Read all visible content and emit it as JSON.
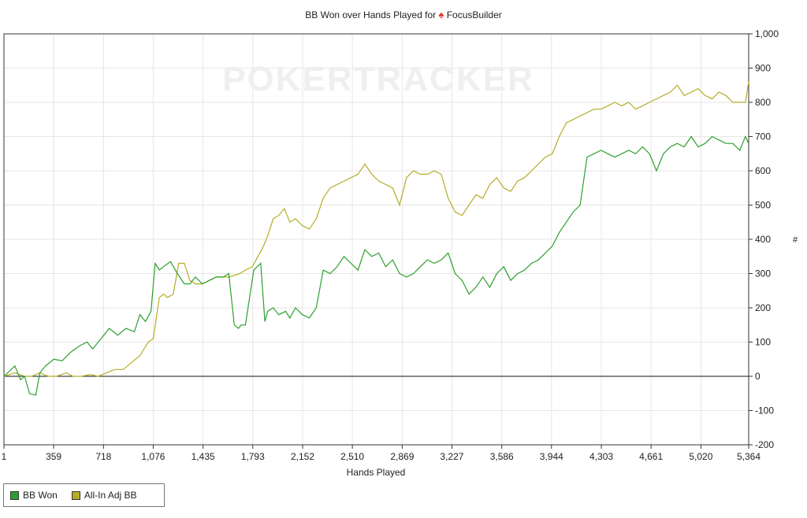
{
  "chart_data": {
    "type": "line",
    "title": "BB Won over Hands Played for",
    "title_player": "FocusBuilder",
    "title_icon": "spade-icon",
    "watermark": "POKERTRACKER",
    "xlabel": "Hands Played",
    "ylabel": "#",
    "xlim": [
      1,
      5364
    ],
    "ylim": [
      -200,
      1000
    ],
    "y_axis_side": "right",
    "grid": true,
    "legend_position": "bottom-left",
    "x_ticks": [
      1,
      359,
      718,
      1076,
      1435,
      1793,
      2152,
      2510,
      2869,
      3227,
      3586,
      3944,
      4303,
      4661,
      5020,
      5364
    ],
    "x_tick_labels": [
      "1",
      "359",
      "718",
      "1,076",
      "1,435",
      "1,793",
      "2,152",
      "2,510",
      "2,869",
      "3,227",
      "3,586",
      "3,944",
      "4,303",
      "4,661",
      "5,020",
      "5,364"
    ],
    "y_ticks": [
      -200,
      -100,
      0,
      100,
      200,
      300,
      400,
      500,
      600,
      700,
      800,
      900,
      1000
    ],
    "y_tick_labels": [
      "-200",
      "-100",
      "0",
      "100",
      "200",
      "300",
      "400",
      "500",
      "600",
      "700",
      "800",
      "900",
      "1,000"
    ],
    "series": [
      {
        "name": "BB Won",
        "color": "#2ca02c",
        "x": [
          1,
          80,
          120,
          150,
          185,
          230,
          260,
          300,
          360,
          420,
          480,
          550,
          600,
          640,
          700,
          760,
          820,
          880,
          940,
          980,
          1020,
          1060,
          1090,
          1120,
          1150,
          1200,
          1250,
          1300,
          1340,
          1380,
          1430,
          1480,
          1530,
          1580,
          1620,
          1660,
          1690,
          1710,
          1740,
          1800,
          1850,
          1880,
          1900,
          1940,
          1980,
          2030,
          2060,
          2100,
          2150,
          2200,
          2250,
          2300,
          2350,
          2400,
          2450,
          2500,
          2550,
          2600,
          2650,
          2700,
          2750,
          2800,
          2850,
          2900,
          2950,
          3000,
          3050,
          3100,
          3150,
          3200,
          3250,
          3300,
          3350,
          3400,
          3450,
          3500,
          3550,
          3600,
          3650,
          3700,
          3750,
          3800,
          3850,
          3900,
          3950,
          4000,
          4050,
          4100,
          4150,
          4200,
          4250,
          4300,
          4350,
          4400,
          4450,
          4500,
          4550,
          4600,
          4650,
          4700,
          4750,
          4800,
          4850,
          4900,
          4950,
          5000,
          5050,
          5100,
          5150,
          5200,
          5250,
          5300,
          5340,
          5364
        ],
        "values": [
          0,
          30,
          -10,
          0,
          -50,
          -55,
          10,
          30,
          50,
          45,
          70,
          90,
          100,
          80,
          110,
          140,
          120,
          140,
          130,
          180,
          160,
          190,
          330,
          310,
          320,
          335,
          300,
          270,
          270,
          290,
          270,
          280,
          290,
          290,
          300,
          150,
          140,
          150,
          150,
          310,
          330,
          160,
          190,
          200,
          180,
          190,
          170,
          200,
          180,
          170,
          200,
          310,
          300,
          320,
          350,
          330,
          310,
          370,
          350,
          360,
          320,
          340,
          300,
          290,
          300,
          320,
          340,
          330,
          340,
          360,
          300,
          280,
          240,
          260,
          290,
          260,
          300,
          320,
          280,
          300,
          310,
          330,
          340,
          360,
          380,
          420,
          450,
          480,
          500,
          640,
          650,
          660,
          650,
          640,
          650,
          660,
          650,
          670,
          650,
          600,
          650,
          670,
          680,
          670,
          700,
          670,
          680,
          700,
          690,
          680,
          680,
          660,
          700,
          680
        ]
      },
      {
        "name": "All-In Adj BB",
        "color": "#b5ac25",
        "x": [
          1,
          80,
          150,
          200,
          260,
          320,
          380,
          450,
          500,
          560,
          620,
          680,
          740,
          800,
          860,
          920,
          980,
          1040,
          1076,
          1120,
          1150,
          1180,
          1220,
          1260,
          1300,
          1340,
          1380,
          1430,
          1480,
          1530,
          1580,
          1620,
          1660,
          1700,
          1740,
          1790,
          1830,
          1870,
          1900,
          1940,
          1980,
          2020,
          2060,
          2100,
          2150,
          2200,
          2250,
          2300,
          2350,
          2400,
          2450,
          2500,
          2550,
          2600,
          2650,
          2700,
          2750,
          2800,
          2850,
          2900,
          2950,
          3000,
          3050,
          3100,
          3150,
          3200,
          3250,
          3300,
          3350,
          3400,
          3450,
          3500,
          3550,
          3600,
          3650,
          3700,
          3750,
          3800,
          3850,
          3900,
          3950,
          4000,
          4050,
          4100,
          4150,
          4200,
          4250,
          4300,
          4350,
          4400,
          4450,
          4500,
          4550,
          4600,
          4650,
          4700,
          4750,
          4800,
          4850,
          4900,
          4950,
          5000,
          5050,
          5100,
          5150,
          5200,
          5250,
          5300,
          5340,
          5364
        ],
        "values": [
          0,
          10,
          0,
          0,
          10,
          0,
          0,
          10,
          0,
          0,
          5,
          0,
          10,
          20,
          20,
          40,
          60,
          100,
          110,
          230,
          240,
          230,
          240,
          330,
          330,
          280,
          270,
          270,
          280,
          290,
          290,
          290,
          295,
          300,
          310,
          320,
          350,
          380,
          410,
          460,
          470,
          490,
          450,
          460,
          440,
          430,
          460,
          520,
          550,
          560,
          570,
          580,
          590,
          620,
          590,
          570,
          560,
          550,
          500,
          580,
          600,
          590,
          590,
          600,
          590,
          520,
          480,
          470,
          500,
          530,
          520,
          560,
          580,
          550,
          540,
          570,
          580,
          600,
          620,
          640,
          650,
          700,
          740,
          750,
          760,
          770,
          780,
          780,
          790,
          800,
          790,
          800,
          780,
          790,
          800,
          810,
          820,
          830,
          850,
          820,
          830,
          840,
          820,
          810,
          830,
          820,
          800,
          800,
          800,
          860
        ]
      }
    ]
  },
  "legend": {
    "items": [
      {
        "label": "BB Won",
        "color": "#2ca02c"
      },
      {
        "label": "All-In Adj BB",
        "color": "#b5ac25"
      }
    ]
  }
}
